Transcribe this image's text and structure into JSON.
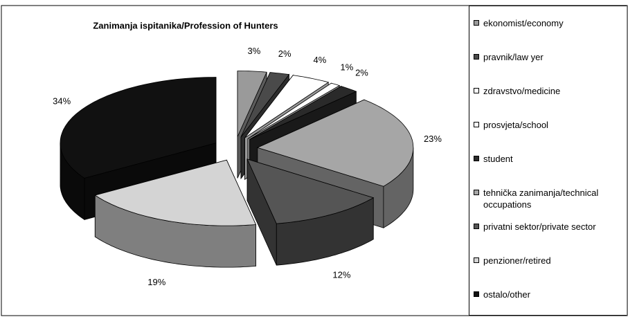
{
  "chart_data": {
    "type": "pie",
    "title": "Zanimanja ispitanika/Profession of Hunters",
    "categories": [
      "ekonomist/economy",
      "pravnik/law yer",
      "zdravstvo/medicine",
      "prosvjeta/school",
      "student",
      "tehnička zanimanja/technical occupations",
      "privatni sektor/private sector",
      "penzioner/retired",
      "ostalo/other"
    ],
    "values": [
      3,
      2,
      4,
      1,
      2,
      23,
      12,
      19,
      34
    ],
    "value_labels": [
      "3%",
      "2%",
      "4%",
      "1%",
      "2%",
      "23%",
      "12%",
      "19%",
      "34%"
    ],
    "colors": [
      "#9a9a9a",
      "#4a4a4a",
      "#ffffff",
      "#ffffff",
      "#2a2a2a",
      "#a6a6a6",
      "#555555",
      "#d4d4d4",
      "#111111"
    ],
    "legend": "right"
  }
}
